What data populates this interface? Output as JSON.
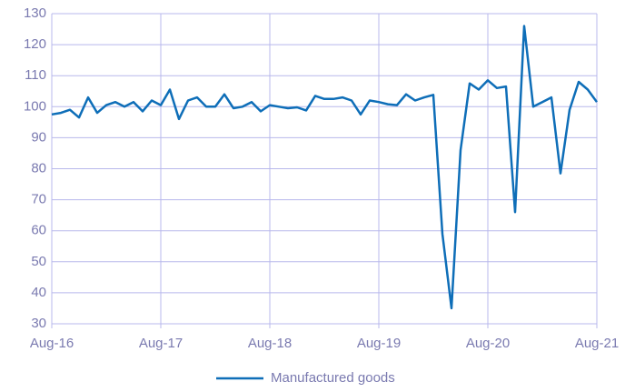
{
  "chart_data": {
    "type": "line",
    "categories": [
      "Aug-16",
      null,
      null,
      null,
      null,
      null,
      null,
      null,
      null,
      null,
      null,
      null,
      "Aug-17",
      null,
      null,
      null,
      null,
      null,
      null,
      null,
      null,
      null,
      null,
      null,
      "Aug-18",
      null,
      null,
      null,
      null,
      null,
      null,
      null,
      null,
      null,
      null,
      null,
      "Aug-19",
      null,
      null,
      null,
      null,
      null,
      null,
      null,
      null,
      null,
      null,
      null,
      "Aug-20",
      null,
      null,
      null,
      null,
      null,
      null,
      null,
      null,
      null,
      null,
      null,
      "Aug-21"
    ],
    "series": [
      {
        "name": "Manufactured goods",
        "color": "#0e6eb8",
        "values": [
          97.5,
          98,
          99,
          96.5,
          103,
          98,
          100.5,
          101.5,
          100,
          101.5,
          98.5,
          102,
          100.5,
          105.5,
          96,
          102,
          103,
          100,
          100,
          104,
          99.5,
          100,
          101.5,
          98.5,
          100.5,
          100,
          99.5,
          99.8,
          98.8,
          103.5,
          102.5,
          102.5,
          103,
          102,
          97.5,
          102,
          101.5,
          100.8,
          100.5,
          104,
          102,
          103,
          103.8,
          59,
          35,
          86,
          107.5,
          105.5,
          108.5,
          106,
          106.5,
          66,
          126,
          100,
          101.5,
          103,
          78.5,
          99,
          108,
          105.5,
          101.5
        ]
      }
    ],
    "ylim": [
      30,
      130
    ],
    "yticks": [
      30,
      40,
      50,
      60,
      70,
      80,
      90,
      100,
      110,
      120,
      130
    ],
    "grid": true,
    "legend": "bottom"
  }
}
